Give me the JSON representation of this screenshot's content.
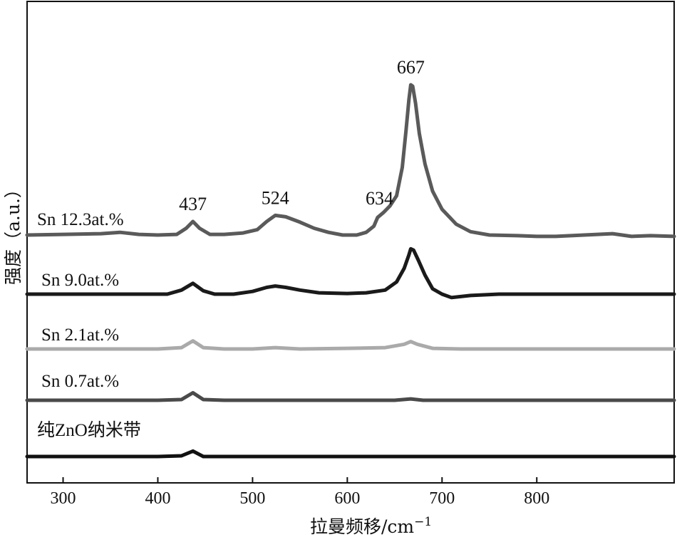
{
  "chart_data": {
    "type": "line",
    "title": "",
    "xlabel": "拉曼频移/cm",
    "xlabel_superscript": "−1",
    "ylabel": "强度（a.u.）",
    "xlim": [
      262,
      945
    ],
    "xticks": [
      300,
      400,
      500,
      600,
      700,
      800
    ],
    "grid": false,
    "legend": "none",
    "peaks": [
      {
        "label": "437",
        "x": 437
      },
      {
        "label": "524",
        "x": 524
      },
      {
        "label": "634",
        "x": 634
      },
      {
        "label": "667",
        "x": 667
      }
    ],
    "series": [
      {
        "name": "Sn 12.3at.%",
        "color": "#5a5a5a",
        "stroke": 5,
        "x": [
          262,
          300,
          340,
          360,
          380,
          400,
          420,
          430,
          437,
          444,
          455,
          470,
          490,
          505,
          515,
          524,
          535,
          550,
          565,
          580,
          595,
          610,
          620,
          628,
          632,
          638,
          645,
          652,
          658,
          662,
          665,
          667,
          669,
          672,
          676,
          682,
          690,
          700,
          715,
          730,
          750,
          780,
          800,
          820,
          850,
          880,
          900,
          920,
          945
        ],
        "y": [
          0.2,
          0.21,
          0.22,
          0.24,
          0.21,
          0.2,
          0.21,
          0.3,
          0.4,
          0.3,
          0.21,
          0.21,
          0.23,
          0.28,
          0.4,
          0.49,
          0.47,
          0.39,
          0.3,
          0.24,
          0.2,
          0.2,
          0.24,
          0.33,
          0.46,
          0.53,
          0.63,
          0.78,
          1.2,
          1.75,
          2.2,
          2.42,
          2.4,
          2.15,
          1.7,
          1.25,
          0.85,
          0.58,
          0.36,
          0.25,
          0.2,
          0.19,
          0.18,
          0.18,
          0.2,
          0.22,
          0.18,
          0.19,
          0.18
        ]
      },
      {
        "name": "Sn 9.0at.%",
        "color": "#1a1a1a",
        "stroke": 5,
        "x": [
          262,
          300,
          340,
          380,
          410,
          425,
          437,
          448,
          460,
          480,
          500,
          515,
          524,
          535,
          550,
          570,
          600,
          620,
          640,
          652,
          660,
          665,
          667,
          670,
          675,
          682,
          690,
          700,
          710,
          730,
          760,
          800,
          850,
          900,
          945
        ],
        "y": [
          0.2,
          0.2,
          0.2,
          0.2,
          0.2,
          0.26,
          0.36,
          0.25,
          0.2,
          0.2,
          0.24,
          0.3,
          0.32,
          0.3,
          0.26,
          0.22,
          0.21,
          0.22,
          0.26,
          0.38,
          0.58,
          0.78,
          0.87,
          0.85,
          0.7,
          0.48,
          0.28,
          0.2,
          0.15,
          0.18,
          0.2,
          0.2,
          0.2,
          0.2,
          0.2
        ]
      },
      {
        "name": "Sn 2.1at.%",
        "color": "#aaaaaa",
        "stroke": 5,
        "x": [
          262,
          300,
          350,
          400,
          425,
          437,
          448,
          470,
          500,
          524,
          550,
          600,
          640,
          660,
          667,
          674,
          690,
          720,
          800,
          945
        ],
        "y": [
          0.2,
          0.2,
          0.2,
          0.2,
          0.22,
          0.32,
          0.22,
          0.2,
          0.2,
          0.22,
          0.2,
          0.21,
          0.22,
          0.27,
          0.31,
          0.27,
          0.21,
          0.2,
          0.2,
          0.2
        ]
      },
      {
        "name": "Sn 0.7at.%",
        "color": "#4a4a4a",
        "stroke": 5,
        "x": [
          262,
          300,
          350,
          400,
          425,
          437,
          448,
          470,
          500,
          550,
          600,
          650,
          667,
          680,
          720,
          800,
          945
        ],
        "y": [
          0.2,
          0.2,
          0.2,
          0.2,
          0.21,
          0.31,
          0.21,
          0.2,
          0.2,
          0.2,
          0.2,
          0.2,
          0.22,
          0.2,
          0.2,
          0.2,
          0.2
        ]
      },
      {
        "name": "纯ZnO纳米带",
        "color": "#111111",
        "stroke": 5,
        "x": [
          262,
          300,
          350,
          400,
          425,
          437,
          448,
          470,
          500,
          550,
          600,
          700,
          800,
          945
        ],
        "y": [
          0.2,
          0.2,
          0.2,
          0.2,
          0.21,
          0.28,
          0.2,
          0.2,
          0.2,
          0.2,
          0.2,
          0.2,
          0.2,
          0.2
        ]
      }
    ]
  }
}
